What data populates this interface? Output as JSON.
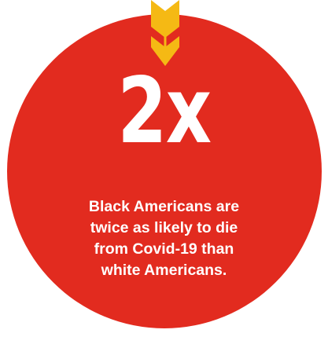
{
  "stat": {
    "value": "2x",
    "caption_lines": [
      "Black Americans are",
      "twice as likely to die",
      "from Covid-19 than",
      "white Americans."
    ]
  },
  "colors": {
    "circle": "#e22b1f",
    "arrow": "#f5b914",
    "text": "#ffffff"
  },
  "icons": {
    "pointer": "chevron-down-arrow-icon"
  }
}
